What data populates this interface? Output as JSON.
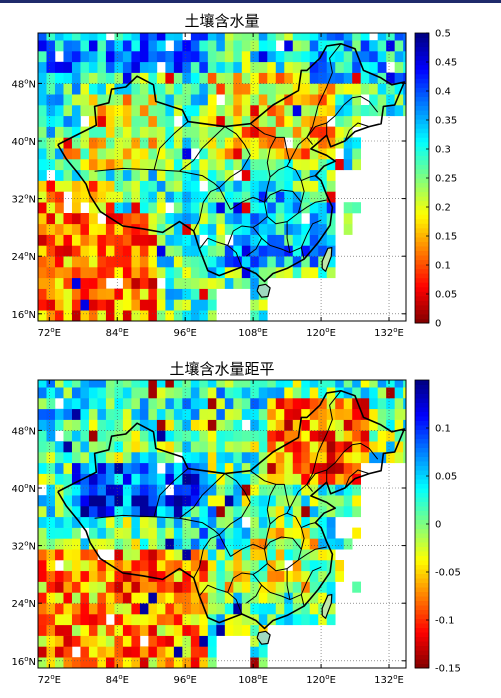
{
  "panels": [
    {
      "title": "土壤含水量",
      "colorbar": {
        "min": 0,
        "max": 0.5,
        "ticks": [
          "0",
          "0.05",
          "0.1",
          "0.15",
          "0.2",
          "0.25",
          "0.3",
          "0.35",
          "0.4",
          "0.45",
          "0.5"
        ]
      },
      "lat_ticks": [
        "16°N",
        "24°N",
        "32°N",
        "40°N",
        "48°N"
      ],
      "lon_ticks": [
        "72°E",
        "84°E",
        "96°E",
        "108°E",
        "120°E",
        "132°E"
      ]
    },
    {
      "title": "土壤含水量距平",
      "colorbar": {
        "min": -0.15,
        "max": 0.15,
        "ticks": [
          "-0.15",
          "-0.1",
          "-0.05",
          "0",
          "0.05",
          "0.1"
        ]
      },
      "lat_ticks": [
        "16°N",
        "24°N",
        "32°N",
        "40°N",
        "48°N"
      ],
      "lon_ticks": [
        "72°E",
        "84°E",
        "96°E",
        "108°E",
        "120°E",
        "132°E"
      ]
    }
  ],
  "colormap": "jet-reversed (dark red = low, dark blue = high)",
  "map_extent": {
    "lon": [
      70,
      135
    ],
    "lat": [
      15,
      55
    ]
  }
}
